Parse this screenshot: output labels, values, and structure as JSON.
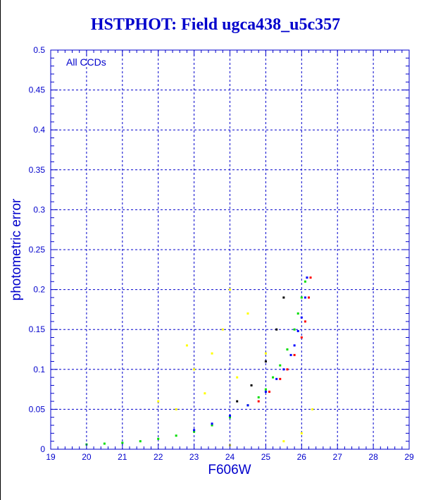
{
  "title": "HSTPHOT: Field ugca438_u5c357",
  "chart_data": {
    "type": "scatter",
    "title": "HSTPHOT: Field ugca438_u5c357",
    "xlabel": "F606W",
    "ylabel": "photometric error",
    "annotation": "All CCDs",
    "xlim": [
      19,
      29
    ],
    "ylim": [
      0,
      0.5
    ],
    "x_ticks": [
      "19",
      "20",
      "21",
      "22",
      "23",
      "24",
      "25",
      "26",
      "27",
      "28",
      "29"
    ],
    "y_ticks": [
      "0",
      "0.05",
      "0.1",
      "0.15",
      "0.2",
      "0.25",
      "0.3",
      "0.35",
      "0.4",
      "0.45",
      "0.5"
    ],
    "grid": true,
    "colors": {
      "axes": "#0000cc",
      "grid": "#0000cc",
      "text": "#0000cc",
      "green": "#00dd00",
      "blue": "#0000ff",
      "red": "#ff0000",
      "yellow": "#ffff00",
      "black": "#000000"
    },
    "series": [
      {
        "color": "green",
        "points": [
          [
            20.0,
            0.006
          ],
          [
            20.5,
            0.007
          ],
          [
            21.0,
            0.008
          ],
          [
            21.5,
            0.01
          ],
          [
            22.0,
            0.013
          ],
          [
            22.5,
            0.017
          ],
          [
            23.0,
            0.022
          ],
          [
            23.5,
            0.03
          ],
          [
            24.0,
            0.04
          ],
          [
            24.5,
            0.055
          ],
          [
            24.8,
            0.065
          ],
          [
            25.0,
            0.075
          ],
          [
            25.2,
            0.09
          ],
          [
            25.4,
            0.105
          ],
          [
            25.6,
            0.125
          ],
          [
            25.8,
            0.15
          ],
          [
            25.9,
            0.17
          ],
          [
            26.0,
            0.19
          ],
          [
            26.1,
            0.21
          ]
        ]
      },
      {
        "color": "blue",
        "points": [
          [
            23.0,
            0.024
          ],
          [
            23.5,
            0.032
          ],
          [
            24.0,
            0.042
          ],
          [
            24.5,
            0.055
          ],
          [
            25.0,
            0.072
          ],
          [
            25.3,
            0.088
          ],
          [
            25.5,
            0.1
          ],
          [
            25.7,
            0.118
          ],
          [
            25.8,
            0.13
          ],
          [
            25.9,
            0.148
          ],
          [
            26.0,
            0.165
          ],
          [
            26.1,
            0.19
          ],
          [
            26.15,
            0.215
          ]
        ]
      },
      {
        "color": "red",
        "points": [
          [
            24.8,
            0.06
          ],
          [
            25.1,
            0.072
          ],
          [
            25.4,
            0.088
          ],
          [
            25.6,
            0.1
          ],
          [
            25.8,
            0.118
          ],
          [
            26.0,
            0.14
          ],
          [
            26.1,
            0.16
          ],
          [
            26.2,
            0.19
          ],
          [
            26.25,
            0.215
          ]
        ]
      },
      {
        "color": "yellow",
        "points": [
          [
            22.5,
            0.05
          ],
          [
            23.0,
            0.1
          ],
          [
            23.5,
            0.12
          ],
          [
            23.8,
            0.15
          ],
          [
            24.0,
            0.2
          ],
          [
            24.2,
            0.09
          ],
          [
            23.3,
            0.07
          ],
          [
            22.8,
            0.13
          ],
          [
            24.5,
            0.17
          ],
          [
            25.0,
            0.12
          ],
          [
            25.5,
            0.01
          ],
          [
            26.0,
            0.02
          ],
          [
            26.3,
            0.05
          ],
          [
            24.0,
            0.005
          ],
          [
            22.0,
            0.06
          ]
        ]
      },
      {
        "color": "black",
        "points": [
          [
            24.2,
            0.06
          ],
          [
            24.6,
            0.08
          ],
          [
            25.0,
            0.11
          ],
          [
            25.3,
            0.15
          ],
          [
            25.5,
            0.19
          ]
        ]
      }
    ]
  }
}
